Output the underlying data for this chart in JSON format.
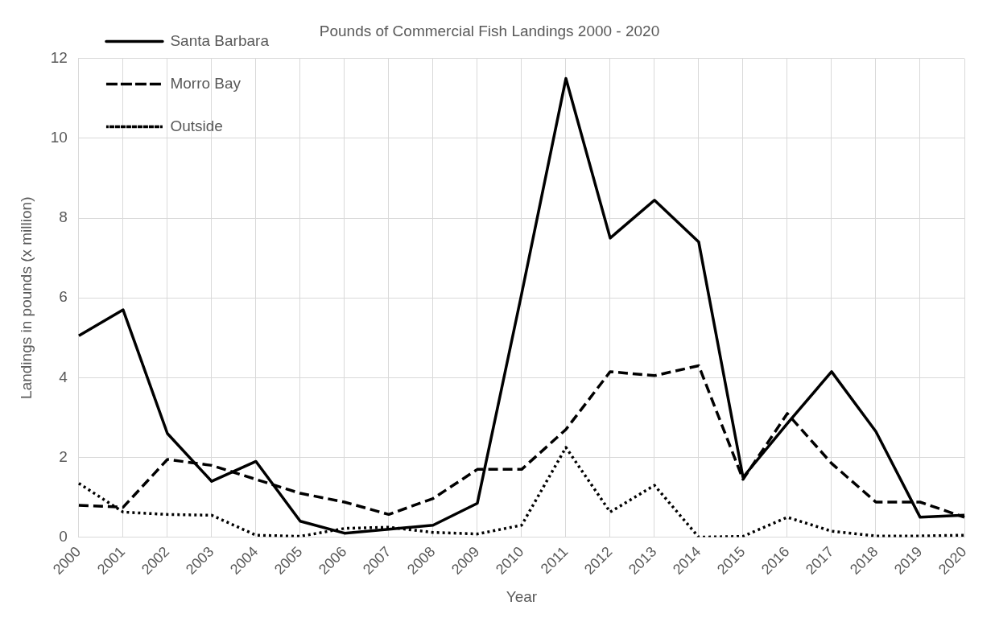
{
  "chart_data": {
    "type": "line",
    "title": "Pounds of Commercial Fish Landings 2000 - 2020",
    "xlabel": "Year",
    "ylabel": "Landings in pounds (x million)",
    "categories": [
      "2000",
      "2001",
      "2002",
      "2003",
      "2004",
      "2005",
      "2006",
      "2007",
      "2008",
      "2009",
      "2010",
      "2011",
      "2012",
      "2013",
      "2014",
      "2015",
      "2016",
      "2017",
      "2018",
      "2019",
      "2020"
    ],
    "series": [
      {
        "name": "Santa Barbara",
        "color": "#000000",
        "line_style": "solid",
        "values": [
          5.05,
          5.7,
          2.6,
          1.4,
          1.9,
          0.4,
          0.1,
          0.2,
          0.3,
          0.85,
          6.1,
          11.5,
          7.5,
          8.45,
          7.4,
          1.5,
          2.85,
          4.15,
          2.65,
          0.5,
          0.55
        ]
      },
      {
        "name": "Morro Bay",
        "color": "#000000",
        "line_style": "dashed",
        "values": [
          0.8,
          0.75,
          1.95,
          1.8,
          1.45,
          1.1,
          0.88,
          0.57,
          0.97,
          1.7,
          1.7,
          2.7,
          4.15,
          4.05,
          4.3,
          1.45,
          3.1,
          1.85,
          0.88,
          0.88,
          0.5
        ]
      },
      {
        "name": "Outside",
        "color": "#000000",
        "line_style": "dotted",
        "values": [
          1.35,
          0.63,
          0.57,
          0.55,
          0.05,
          0.02,
          0.22,
          0.25,
          0.12,
          0.08,
          0.3,
          2.25,
          0.63,
          1.3,
          0.0,
          0.02,
          0.5,
          0.15,
          0.03,
          0.03,
          0.05
        ]
      }
    ],
    "ylim": [
      0,
      12
    ],
    "yticks": [
      0,
      2,
      4,
      6,
      8,
      10,
      12
    ],
    "grid": true,
    "legend": "top left",
    "marker": "none"
  }
}
